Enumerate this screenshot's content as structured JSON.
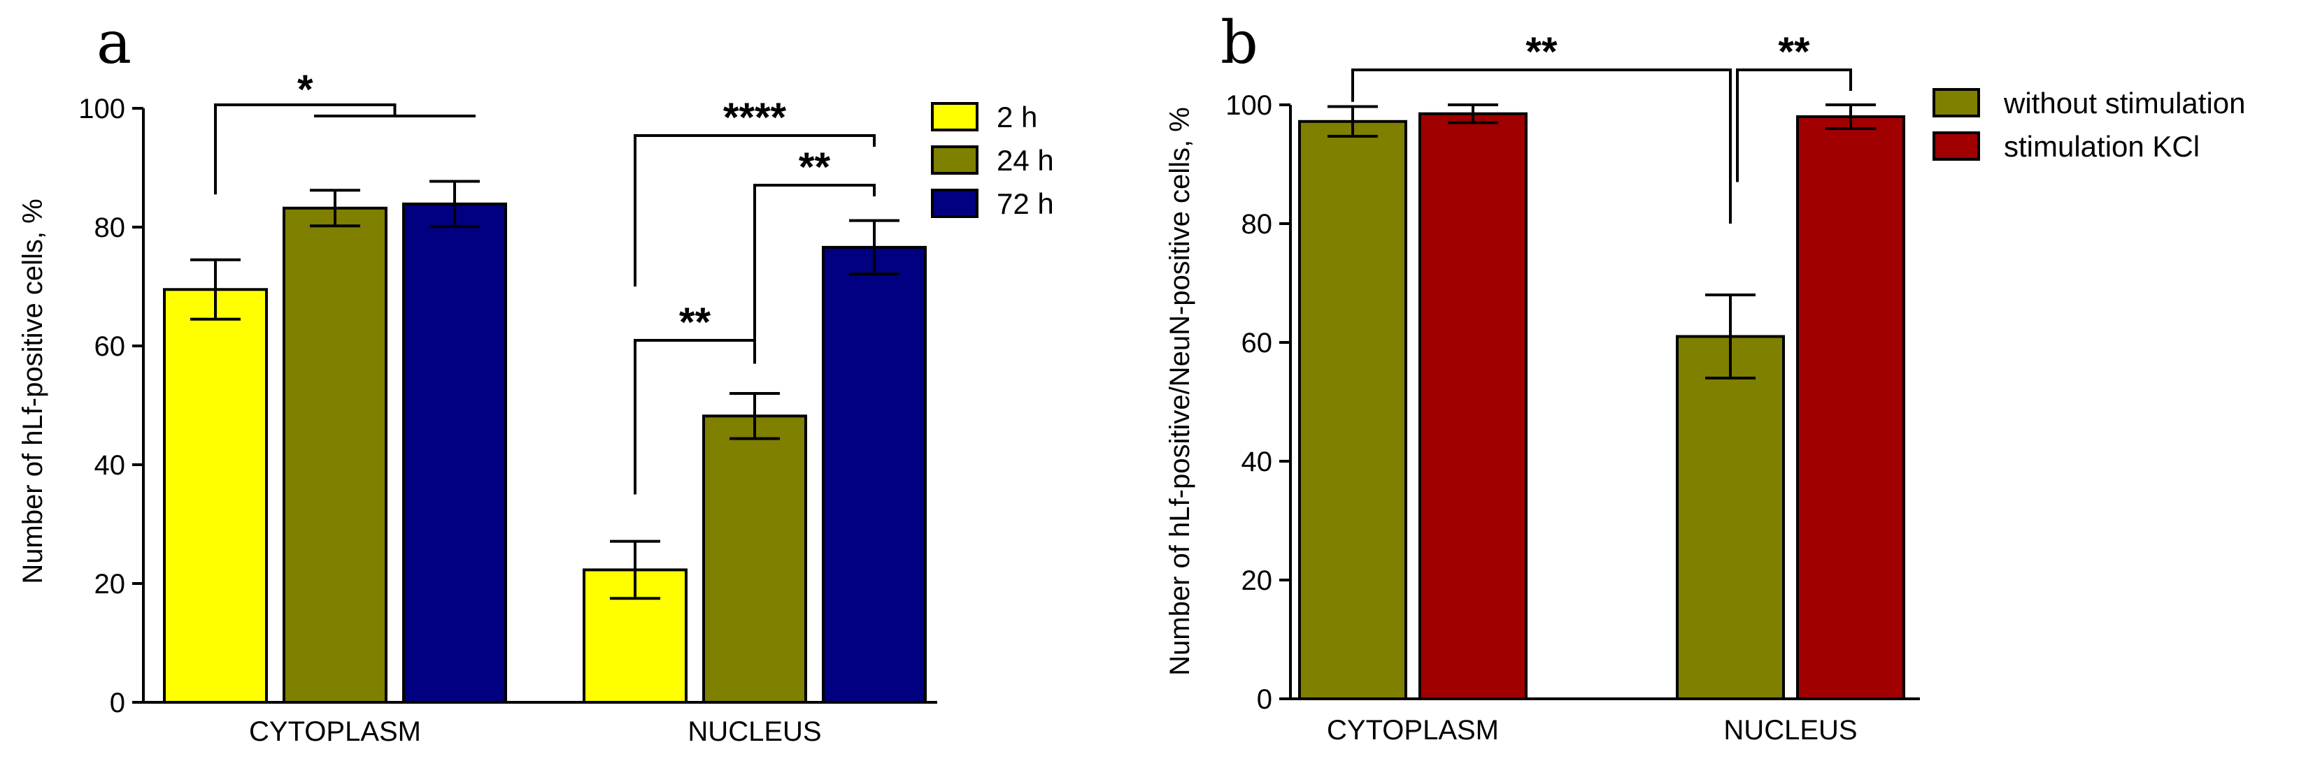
{
  "chart_data": [
    {
      "type": "bar",
      "panel": "a",
      "ylabel": "Number of hLf-positive cells, %",
      "ylim": [
        0,
        100
      ],
      "yticks": [
        "0",
        "20",
        "40",
        "60",
        "80",
        "100"
      ],
      "categories": [
        "CYTOPLASM",
        "NUCLEUS"
      ],
      "series": [
        {
          "name": "2 h",
          "color": "#ffff00",
          "values": [
            69.5,
            22.3
          ],
          "errors": [
            5.0,
            4.8
          ]
        },
        {
          "name": "24 h",
          "color": "#7f7f00",
          "values": [
            83.2,
            48.2
          ],
          "errors": [
            3.0,
            3.8
          ]
        },
        {
          "name": "72 h",
          "color": "#000080",
          "values": [
            83.9,
            76.6
          ],
          "errors": [
            3.8,
            4.5
          ]
        }
      ],
      "legend_position": "top-right",
      "significance": [
        {
          "category": "CYTOPLASM",
          "from_series": 0,
          "to_series": 1,
          "label": "*"
        },
        {
          "category": "NUCLEUS",
          "from_series": 0,
          "to_series": 2,
          "label": "****"
        },
        {
          "category": "NUCLEUS",
          "from_series": 1,
          "to_series": 2,
          "label": "**"
        },
        {
          "category": "NUCLEUS",
          "from_series": 0,
          "to_series": 1,
          "label": "**"
        }
      ]
    },
    {
      "type": "bar",
      "panel": "b",
      "ylabel": "Number of hLf-positive/NeuN-positive cells, %",
      "ylim": [
        0,
        100
      ],
      "yticks": [
        "0",
        "20",
        "40",
        "60",
        "80",
        "100"
      ],
      "categories": [
        "CYTOPLASM",
        "NUCLEUS"
      ],
      "series": [
        {
          "name": "without stimulation",
          "color": "#7f7f00",
          "values": [
            97.2,
            61.0
          ],
          "errors": [
            2.5,
            7.0
          ]
        },
        {
          "name": "stimulation KCl",
          "color": "#a00000",
          "values": [
            98.5,
            98.0
          ],
          "errors": [
            1.5,
            2.0
          ]
        }
      ],
      "legend_position": "top-right",
      "significance": [
        {
          "between": "CYTOPLASM without stimulation - NUCLEUS without stimulation",
          "label": "**"
        },
        {
          "between": "NUCLEUS without stimulation - NUCLEUS stimulation KCl",
          "label": "**"
        }
      ]
    }
  ]
}
